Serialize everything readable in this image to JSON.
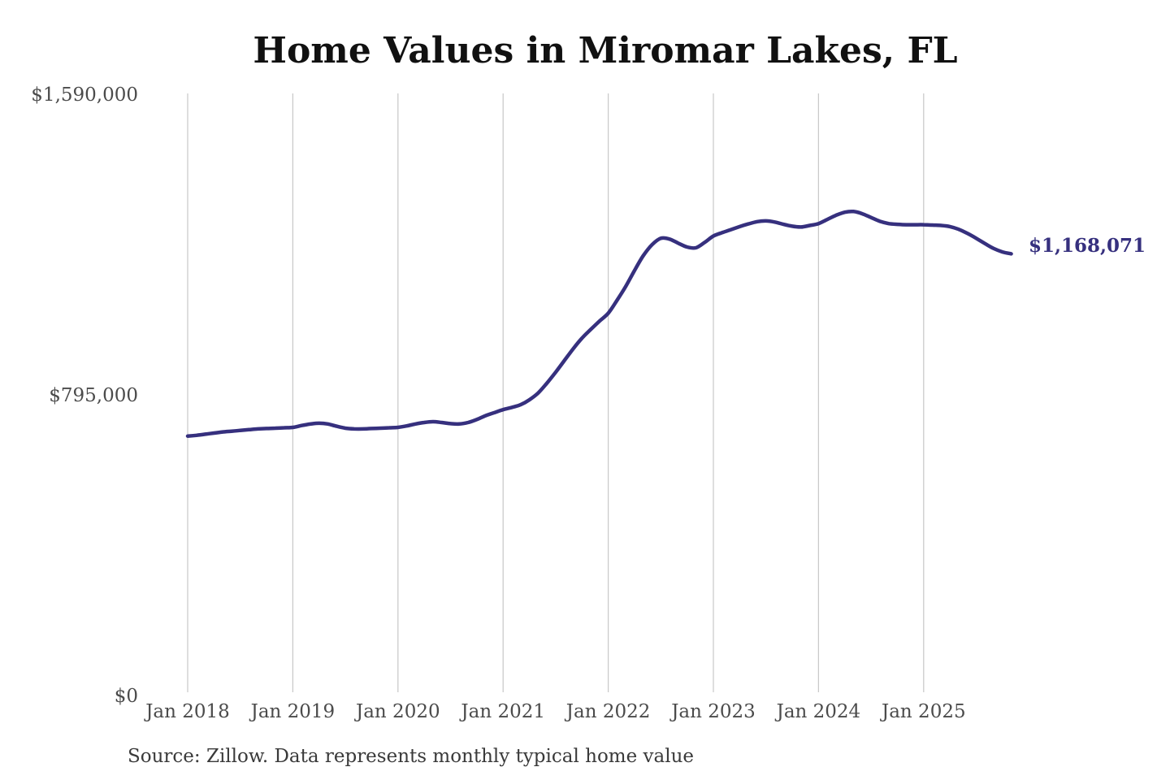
{
  "page": {
    "background_color": "#ffffff"
  },
  "chart_data": {
    "type": "line",
    "title": "Home Values in Miromar Lakes, FL",
    "source_note": "Source: Zillow. Data represents monthly typical home value",
    "series_name": "Monthly typical home value",
    "end_label": "$1,168,071",
    "final_value": 1168071,
    "line_color": "#36307e",
    "grid_color": "#c9c9c9",
    "axis_label_color": "#4b4b4b",
    "title_color": "#111111",
    "legend": "none",
    "grid": "vertical-only",
    "ylim": [
      0,
      1590000
    ],
    "y_ticks": [
      0,
      795000,
      1590000
    ],
    "y_tick_labels": [
      "$0",
      "$795,000",
      "$1,590,000"
    ],
    "x_tick_labels": [
      "Jan 2018",
      "Jan 2019",
      "Jan 2020",
      "Jan 2021",
      "Jan 2022",
      "Jan 2023",
      "Jan 2024",
      "Jan 2025"
    ],
    "x_start_month": "2018-01",
    "x_end_month": "2025-11",
    "frequency": "monthly",
    "values": [
      686000,
      688000,
      691000,
      694000,
      697000,
      699000,
      701000,
      703000,
      705000,
      706000,
      707000,
      708000,
      709000,
      714000,
      718000,
      720000,
      718000,
      712000,
      707000,
      705000,
      705000,
      706000,
      707000,
      708000,
      709000,
      713000,
      718000,
      722000,
      724000,
      722000,
      719000,
      718000,
      722000,
      730000,
      740000,
      748000,
      756000,
      762000,
      769000,
      782000,
      800000,
      826000,
      855000,
      886000,
      917000,
      945000,
      968000,
      990000,
      1011000,
      1045000,
      1082000,
      1124000,
      1163000,
      1192000,
      1209000,
      1207000,
      1196000,
      1186000,
      1184000,
      1198000,
      1215000,
      1224000,
      1232000,
      1240000,
      1247000,
      1253000,
      1255000,
      1252000,
      1246000,
      1241000,
      1239000,
      1243000,
      1248000,
      1259000,
      1270000,
      1278000,
      1280000,
      1274000,
      1264000,
      1254000,
      1248000,
      1246000,
      1245000,
      1245000,
      1245000,
      1244000,
      1243000,
      1240000,
      1233000,
      1222000,
      1209000,
      1195000,
      1182000,
      1173000,
      1168071
    ]
  }
}
